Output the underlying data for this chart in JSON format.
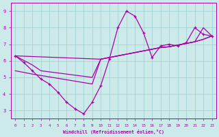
{
  "x_data": [
    0,
    1,
    2,
    3,
    4,
    5,
    6,
    7,
    8,
    9,
    10,
    11,
    12,
    13,
    14,
    15,
    16,
    17,
    18,
    19,
    20,
    21,
    22,
    23
  ],
  "y_main": [
    6.3,
    5.9,
    5.4,
    4.9,
    4.6,
    4.1,
    3.5,
    3.1,
    2.8,
    3.5,
    4.5,
    6.1,
    8.0,
    9.0,
    8.7,
    7.7,
    6.2,
    6.9,
    7.0,
    6.9,
    7.1,
    8.0,
    7.6,
    7.5
  ],
  "trend1_x": [
    0,
    10,
    11,
    12,
    13,
    14,
    15,
    16,
    17,
    18,
    19,
    20,
    21,
    22,
    23
  ],
  "trend1_y": [
    6.3,
    6.1,
    6.2,
    6.3,
    6.4,
    6.5,
    6.6,
    6.7,
    6.8,
    6.85,
    6.95,
    7.05,
    7.15,
    7.3,
    7.5
  ],
  "trend2_x": [
    0,
    2,
    3,
    9,
    10,
    11,
    12,
    13,
    14,
    15,
    16,
    17,
    18,
    19,
    20,
    21,
    22,
    23
  ],
  "trend2_y": [
    6.3,
    5.75,
    5.4,
    5.0,
    6.1,
    6.2,
    6.3,
    6.4,
    6.5,
    6.6,
    6.7,
    6.8,
    6.85,
    6.95,
    7.05,
    7.15,
    8.0,
    7.5
  ],
  "trend3_x": [
    0,
    2,
    9,
    10,
    11,
    12,
    13,
    14,
    15,
    16,
    17,
    18,
    19,
    20,
    21,
    22,
    23
  ],
  "trend3_y": [
    5.4,
    5.2,
    4.6,
    6.1,
    6.2,
    6.3,
    6.4,
    6.5,
    6.6,
    6.7,
    6.8,
    6.85,
    6.95,
    7.05,
    7.15,
    7.3,
    7.5
  ],
  "line_color": "#aa00aa",
  "bg_color": "#cdeaea",
  "grid_color": "#99cccc",
  "xlabel": "Windchill (Refroidissement éolien,°C)",
  "xlim": [
    -0.5,
    23.5
  ],
  "ylim": [
    2.5,
    9.5
  ],
  "xticks": [
    0,
    1,
    2,
    3,
    4,
    5,
    6,
    7,
    8,
    9,
    10,
    11,
    12,
    13,
    14,
    15,
    16,
    17,
    18,
    19,
    20,
    21,
    22,
    23
  ],
  "yticks": [
    3,
    4,
    5,
    6,
    7,
    8,
    9
  ]
}
